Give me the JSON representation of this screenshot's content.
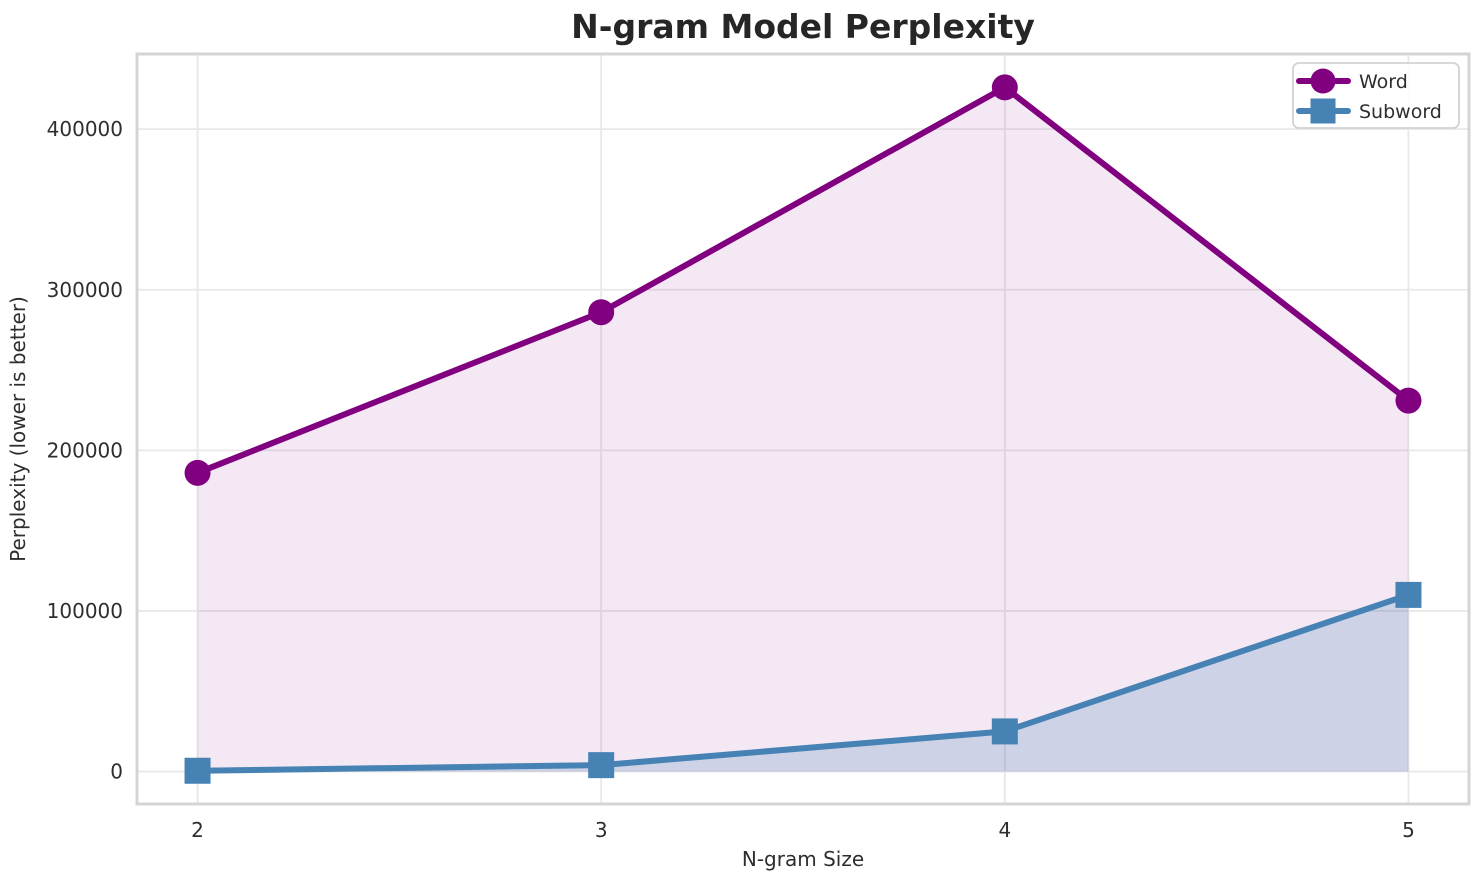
{
  "chart_data": {
    "type": "line",
    "title": "N-gram Model Perplexity",
    "xlabel": "N-gram Size",
    "ylabel": "Perplexity (lower is better)",
    "x": [
      2,
      3,
      4,
      5
    ],
    "xtick_labels": [
      "2",
      "3",
      "4",
      "5"
    ],
    "yticks": [
      0,
      100000,
      200000,
      300000,
      400000
    ],
    "ytick_labels": [
      "0",
      "100000",
      "200000",
      "300000",
      "400000"
    ],
    "xlim": [
      1.85,
      5.15
    ],
    "ylim": [
      -20200,
      446800
    ],
    "grid": true,
    "area_fill_to_zero": true,
    "legend_position": "upper right",
    "series": [
      {
        "name": "Word",
        "color": "#800080",
        "marker": "circle",
        "fill_alpha": 0.09,
        "values": [
          186000,
          286000,
          426000,
          231000
        ]
      },
      {
        "name": "Subword",
        "color": "#4682b4",
        "marker": "square",
        "fill_alpha": 0.22,
        "values": [
          500,
          4000,
          25000,
          110000
        ]
      }
    ]
  }
}
